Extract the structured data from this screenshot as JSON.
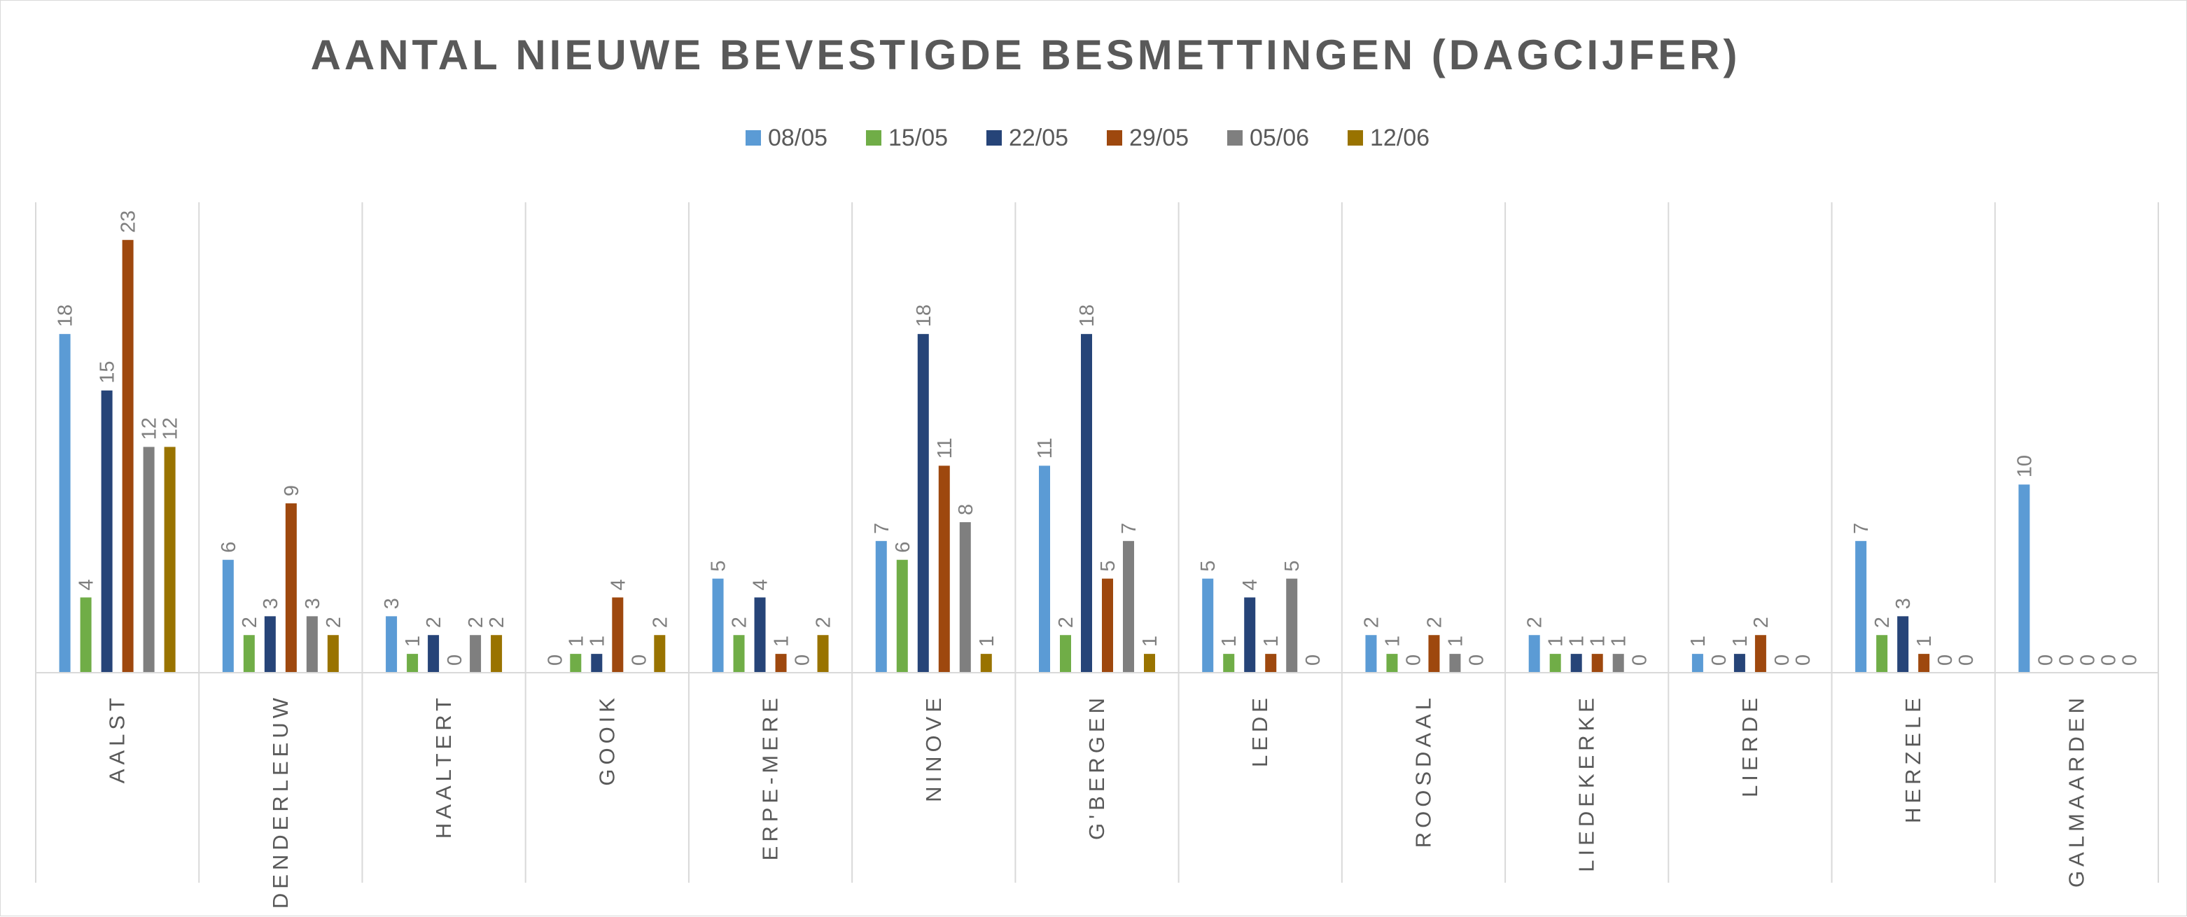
{
  "chart_data": {
    "type": "bar",
    "title": "AANTAL NIEUWE BEVESTIGDE BESMETTINGEN (DAGCIJFER)",
    "xlabel": "",
    "ylabel": "",
    "ylim": [
      0,
      25
    ],
    "grid": false,
    "legend_position": "top-center",
    "categories": [
      "AALST",
      "DENDERLEEUW",
      "HAALTERT",
      "GOOIK",
      "ERPE-MERE",
      "NINOVE",
      "G'BERGEN",
      "LEDE",
      "ROOSDAAL",
      "LIEDEKERKE",
      "LIERDE",
      "HERZELE",
      "GALMAARDEN"
    ],
    "series": [
      {
        "name": "08/05",
        "color": "#5B9BD5",
        "values": [
          18,
          6,
          3,
          0,
          5,
          7,
          11,
          5,
          2,
          2,
          1,
          7,
          10
        ]
      },
      {
        "name": "15/05",
        "color": "#70AD47",
        "values": [
          4,
          2,
          1,
          1,
          2,
          6,
          2,
          1,
          1,
          1,
          0,
          2,
          0
        ]
      },
      {
        "name": "22/05",
        "color": "#264478",
        "values": [
          15,
          3,
          2,
          1,
          4,
          18,
          18,
          4,
          0,
          1,
          1,
          3,
          0
        ]
      },
      {
        "name": "29/05",
        "color": "#9E480E",
        "values": [
          23,
          9,
          0,
          4,
          1,
          11,
          5,
          1,
          2,
          1,
          2,
          1,
          0
        ]
      },
      {
        "name": "05/06",
        "color": "#7F7F7F",
        "values": [
          12,
          3,
          2,
          0,
          0,
          8,
          7,
          5,
          1,
          1,
          0,
          0,
          0
        ]
      },
      {
        "name": "12/06",
        "color": "#997300",
        "values": [
          12,
          2,
          2,
          2,
          2,
          1,
          1,
          0,
          0,
          0,
          0,
          0,
          0
        ]
      }
    ],
    "colors": {
      "axis": "#d9d9d9",
      "text": "#595959",
      "data_label": "#7f7f7f"
    }
  }
}
